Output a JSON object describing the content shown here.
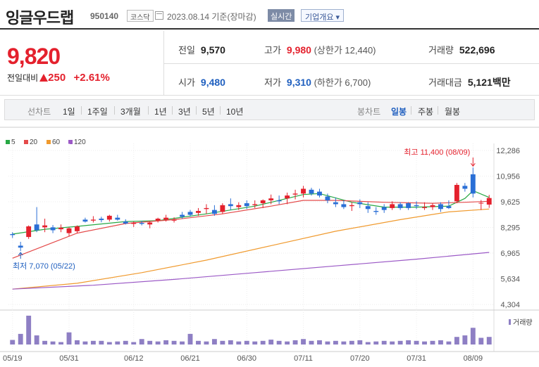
{
  "header": {
    "company": "잉글우드랩",
    "code": "950140",
    "market": "코스닥",
    "date": "2023.08.14 기준(장마감)",
    "realtime_label": "실시간",
    "info_label": "기업개요 ▾"
  },
  "price": {
    "current": "9,820",
    "change_label": "전일대비",
    "change": "250",
    "change_pct": "+2.61%"
  },
  "stats": {
    "prev_close_label": "전일",
    "prev_close": "9,570",
    "high_label": "고가",
    "high": "9,980",
    "upper_limit": "(상한가 12,440)",
    "volume_label": "거래량",
    "volume": "522,696",
    "open_label": "시가",
    "open": "9,480",
    "low_label": "저가",
    "low": "9,310",
    "lower_limit": "(하한가 6,700)",
    "amount_label": "거래대금",
    "amount": "5,121",
    "amount_unit": "백만"
  },
  "periods": {
    "line_label": "선차트",
    "line_items": [
      "1일",
      "1주일",
      "3개월",
      "1년",
      "3년",
      "5년",
      "10년"
    ],
    "candle_label": "봉차트",
    "candle_items": [
      "일봉",
      "주봉",
      "월봉"
    ],
    "active": "일봉"
  },
  "colors": {
    "up": "#e4212d",
    "down": "#2a6fd6",
    "ma5": "#27a844",
    "ma20": "#e44a4a",
    "ma60": "#f09a2e",
    "ma120": "#9b59c6",
    "volume": "#8e7fc4"
  },
  "chart_data": {
    "type": "candlestick",
    "legend": [
      {
        "label": "5",
        "color": "#27a844"
      },
      {
        "label": "20",
        "color": "#e44a4a"
      },
      {
        "label": "60",
        "color": "#f09a2e"
      },
      {
        "label": "120",
        "color": "#9b59c6"
      }
    ],
    "y_ticks": [
      "12,286",
      "10,956",
      "9,625",
      "8,295",
      "6,965",
      "5,634",
      "4,304"
    ],
    "ylim": [
      4304,
      12286
    ],
    "x_ticks": [
      {
        "label": "05/19",
        "index": 0
      },
      {
        "label": "05/31",
        "index": 7
      },
      {
        "label": "06/12",
        "index": 15
      },
      {
        "label": "06/21",
        "index": 22
      },
      {
        "label": "06/30",
        "index": 29
      },
      {
        "label": "07/11",
        "index": 36
      },
      {
        "label": "07/20",
        "index": 43
      },
      {
        "label": "07/31",
        "index": 50
      },
      {
        "label": "08/09",
        "index": 57
      }
    ],
    "max_annotation": "최고 11,400 (08/09)",
    "max_index": 57,
    "min_annotation": "최저 7,070 (05/22)",
    "min_index": 1,
    "volume_label": "거래량",
    "candles": [
      [
        7950,
        8050,
        7750,
        7900
      ],
      [
        7350,
        7550,
        7070,
        7250
      ],
      [
        7800,
        8400,
        7700,
        8350
      ],
      [
        8450,
        9350,
        8050,
        8150
      ],
      [
        8300,
        8750,
        8050,
        8400
      ],
      [
        8300,
        8420,
        8000,
        8150
      ],
      [
        8200,
        8450,
        8050,
        8280
      ],
      [
        8000,
        8300,
        7850,
        8250
      ],
      [
        8100,
        8400,
        8000,
        8350
      ],
      [
        8700,
        8800,
        8550,
        8600
      ],
      [
        8650,
        8880,
        8550,
        8700
      ],
      [
        8750,
        8850,
        8560,
        8680
      ],
      [
        8700,
        8950,
        8600,
        8900
      ],
      [
        8800,
        8950,
        8650,
        8700
      ],
      [
        8600,
        8720,
        8450,
        8500
      ],
      [
        8480,
        8600,
        8320,
        8550
      ],
      [
        8530,
        8640,
        8400,
        8480
      ],
      [
        8450,
        8600,
        8250,
        8550
      ],
      [
        8650,
        8800,
        8550,
        8750
      ],
      [
        8700,
        8950,
        8600,
        8800
      ],
      [
        8650,
        8820,
        8550,
        8700
      ],
      [
        8950,
        9100,
        8750,
        8850
      ],
      [
        9100,
        9200,
        8850,
        8950
      ],
      [
        9050,
        9300,
        8900,
        9150
      ],
      [
        9250,
        9500,
        9000,
        9300
      ],
      [
        9200,
        9450,
        8900,
        9000
      ],
      [
        9100,
        9550,
        9000,
        9450
      ],
      [
        9500,
        9800,
        9200,
        9400
      ],
      [
        9350,
        9600,
        9200,
        9450
      ],
      [
        9550,
        9700,
        9250,
        9400
      ],
      [
        9450,
        9700,
        9300,
        9500
      ],
      [
        9550,
        9750,
        9300,
        9700
      ],
      [
        9700,
        10000,
        9500,
        9800
      ],
      [
        9700,
        9950,
        9500,
        9650
      ],
      [
        9800,
        10100,
        9500,
        9950
      ],
      [
        10000,
        10250,
        9750,
        10050
      ],
      [
        10050,
        10450,
        9850,
        10300
      ],
      [
        10250,
        10350,
        9950,
        10050
      ],
      [
        10150,
        10300,
        9850,
        9950
      ],
      [
        9900,
        10050,
        9550,
        9700
      ],
      [
        9600,
        9850,
        9350,
        9500
      ],
      [
        9500,
        9700,
        9250,
        9350
      ],
      [
        9400,
        9600,
        9150,
        9450
      ],
      [
        9600,
        9750,
        9300,
        9500
      ],
      [
        9400,
        9600,
        9050,
        9250
      ],
      [
        9150,
        9350,
        8950,
        9100
      ],
      [
        9350,
        9500,
        9050,
        9200
      ],
      [
        9300,
        9650,
        9200,
        9500
      ],
      [
        9500,
        9600,
        9200,
        9300
      ],
      [
        9550,
        9600,
        9200,
        9300
      ],
      [
        9450,
        9650,
        9250,
        9400
      ],
      [
        9300,
        9600,
        9200,
        9350
      ],
      [
        9350,
        9550,
        9200,
        9450
      ],
      [
        9500,
        9600,
        9100,
        9250
      ],
      [
        9400,
        9700,
        9250,
        9300
      ],
      [
        9650,
        10600,
        9550,
        10500
      ],
      [
        10450,
        10600,
        10150,
        10300
      ],
      [
        11050,
        11400,
        9850,
        10050
      ],
      [
        9550,
        9720,
        9200,
        9570
      ],
      [
        9480,
        9980,
        9310,
        9820
      ]
    ],
    "ma": {
      "5": [
        [
          0,
          7950
        ],
        [
          4,
          8200
        ],
        [
          8,
          8350
        ],
        [
          14,
          8600
        ],
        [
          18,
          8650
        ],
        [
          24,
          9000
        ],
        [
          30,
          9400
        ],
        [
          36,
          10000
        ],
        [
          38,
          10050
        ],
        [
          42,
          9600
        ],
        [
          46,
          9350
        ],
        [
          50,
          9350
        ],
        [
          54,
          9400
        ],
        [
          56,
          9800
        ],
        [
          57,
          10200
        ],
        [
          59,
          9850
        ]
      ],
      "20": [
        [
          0,
          6700
        ],
        [
          4,
          7350
        ],
        [
          8,
          8000
        ],
        [
          14,
          8500
        ],
        [
          20,
          8700
        ],
        [
          26,
          9000
        ],
        [
          32,
          9400
        ],
        [
          36,
          9700
        ],
        [
          40,
          9700
        ],
        [
          46,
          9600
        ],
        [
          52,
          9550
        ],
        [
          56,
          9600
        ],
        [
          59,
          9650
        ]
      ],
      "60": [
        [
          0,
          5100
        ],
        [
          8,
          5400
        ],
        [
          16,
          5950
        ],
        [
          24,
          6600
        ],
        [
          32,
          7350
        ],
        [
          40,
          8100
        ],
        [
          48,
          8700
        ],
        [
          54,
          9100
        ],
        [
          59,
          9250
        ]
      ],
      "120": [
        [
          0,
          5100
        ],
        [
          10,
          5300
        ],
        [
          20,
          5600
        ],
        [
          30,
          5950
        ],
        [
          40,
          6300
        ],
        [
          50,
          6650
        ],
        [
          59,
          7000
        ]
      ]
    },
    "volumes": [
      15,
      35,
      95,
      30,
      12,
      10,
      8,
      40,
      14,
      10,
      12,
      12,
      8,
      10,
      12,
      8,
      18,
      12,
      10,
      14,
      12,
      10,
      35,
      12,
      10,
      18,
      12,
      14,
      10,
      12,
      10,
      12,
      16,
      12,
      10,
      14,
      18,
      12,
      14,
      10,
      12,
      10,
      12,
      14,
      8,
      10,
      12,
      10,
      12,
      14,
      12,
      10,
      12,
      14,
      10,
      25,
      30,
      55,
      22,
      25
    ]
  }
}
